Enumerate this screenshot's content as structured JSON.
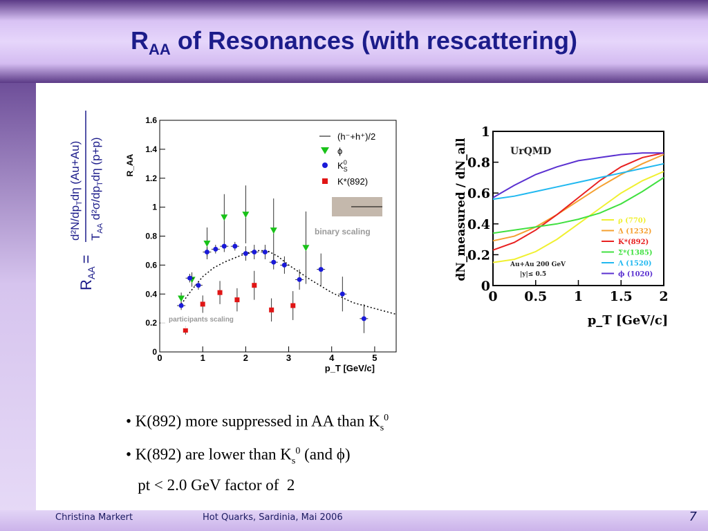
{
  "slide": {
    "title_main": "R",
    "title_sub": "AA",
    "title_rest": " of Resonances (with rescattering)",
    "formula": {
      "lhs": "R",
      "lhs_sub": "AA",
      "eq": "=",
      "numerator": "d²N/dp",
      "numerator_sub": "T",
      "numerator_rest": "dη  (Au+Au)",
      "den_a": "T",
      "den_a_sub": "AA",
      "den_b": " d²σ/dp",
      "den_b_sub": "T",
      "den_c": "dη  (p+p)"
    },
    "bullets": [
      {
        "text": "• K(892) more suppressed in AA than K",
        "sub": "s",
        "sup": "0",
        "tail": ""
      },
      {
        "text": "• K(892) are lower than K",
        "sub": "s",
        "sup": "0",
        "tail": " (and ϕ)"
      },
      {
        "text": "   pt < 2.0 GeV factor of  2",
        "sub": "",
        "sup": "",
        "tail": ""
      }
    ],
    "footer_author": "Christina Markert",
    "footer_event": "Hot Quarks, Sardinia, Mai 2006",
    "page_number": "7"
  },
  "chart_data": [
    {
      "type": "scatter",
      "ylabel": "R_AA",
      "xlabel": "p_T [GeV/c]",
      "xlim": [
        0,
        5.5
      ],
      "ylim": [
        0,
        1.6
      ],
      "x_ticks": [
        "0",
        "1",
        "2",
        "3",
        "4",
        "5"
      ],
      "y_ticks": [
        "0",
        "0.2",
        "0.4",
        "0.6",
        "0.8",
        "1",
        "1.2",
        "1.4",
        "1.6"
      ],
      "annotations": [
        "binary scaling",
        "participants scaling"
      ],
      "legend_placement": "top-right",
      "series": [
        {
          "name": "(h⁻+h⁺)/2",
          "style": "dashed-line",
          "color": "#000000",
          "x": [
            0.5,
            0.75,
            1.0,
            1.25,
            1.5,
            1.75,
            2.0,
            2.25,
            2.5,
            2.75,
            3.0,
            3.5,
            4.0,
            4.5,
            5.0,
            5.5
          ],
          "y": [
            0.33,
            0.43,
            0.52,
            0.58,
            0.62,
            0.65,
            0.68,
            0.7,
            0.7,
            0.66,
            0.6,
            0.5,
            0.41,
            0.34,
            0.3,
            0.26
          ]
        },
        {
          "name": "ϕ",
          "marker": "triangle-down",
          "color": "#19c219",
          "x": [
            0.5,
            0.75,
            1.1,
            1.5,
            2.0,
            2.65,
            3.4
          ],
          "y": [
            0.37,
            0.5,
            0.75,
            0.93,
            0.95,
            0.84,
            0.72
          ],
          "err": [
            0.04,
            0.05,
            0.11,
            0.16,
            0.2,
            0.22,
            0.25
          ]
        },
        {
          "name": "K",
          "name_sub": "S",
          "name_sup": "0",
          "marker": "circle",
          "color": "#1a1ad8",
          "x": [
            0.5,
            0.7,
            0.9,
            1.1,
            1.3,
            1.5,
            1.75,
            2.0,
            2.2,
            2.45,
            2.65,
            2.9,
            3.25,
            3.75,
            4.25,
            4.75
          ],
          "y": [
            0.32,
            0.51,
            0.46,
            0.69,
            0.71,
            0.73,
            0.73,
            0.68,
            0.69,
            0.69,
            0.62,
            0.6,
            0.5,
            0.57,
            0.4,
            0.23
          ],
          "err": [
            0.03,
            0.03,
            0.03,
            0.03,
            0.03,
            0.04,
            0.03,
            0.05,
            0.05,
            0.05,
            0.05,
            0.06,
            0.07,
            0.11,
            0.12,
            0.1
          ]
        },
        {
          "name": "K*(892)",
          "marker": "square",
          "color": "#e01515",
          "x": [
            0.6,
            1.0,
            1.4,
            1.8,
            2.2,
            2.6,
            3.1
          ],
          "y": [
            0.15,
            0.33,
            0.41,
            0.36,
            0.46,
            0.29,
            0.32
          ],
          "err": [
            0.03,
            0.06,
            0.08,
            0.08,
            0.1,
            0.08,
            0.1
          ]
        }
      ]
    },
    {
      "type": "line",
      "ylabel": "dN_measured / dN_all",
      "xlabel": "p_T [GeV/c]",
      "xlim": [
        0,
        2
      ],
      "ylim": [
        0,
        1
      ],
      "x_ticks": [
        "0",
        "0.5",
        "1",
        "1.5",
        "2"
      ],
      "y_ticks": [
        "0",
        "0.2",
        "0.4",
        "0.6",
        "0.8",
        "1"
      ],
      "model_label": "UrQMD",
      "system_label": "Au+Au 200 GeV",
      "cut_label": "|y|≤ 0.5",
      "legend_placement": "bottom-right",
      "series": [
        {
          "name": "ρ (770)",
          "color": "#f0f030",
          "x": [
            0,
            0.25,
            0.5,
            0.75,
            1.0,
            1.25,
            1.5,
            1.75,
            2.0
          ],
          "y": [
            0.15,
            0.17,
            0.22,
            0.3,
            0.4,
            0.5,
            0.6,
            0.68,
            0.74
          ]
        },
        {
          "name": "Δ (1232)",
          "color": "#f5a030",
          "x": [
            0,
            0.25,
            0.5,
            0.75,
            1.0,
            1.25,
            1.5,
            1.75,
            2.0
          ],
          "y": [
            0.29,
            0.32,
            0.38,
            0.46,
            0.55,
            0.64,
            0.72,
            0.79,
            0.85
          ]
        },
        {
          "name": "K*(892)",
          "color": "#e82020",
          "x": [
            0,
            0.25,
            0.5,
            0.75,
            1.0,
            1.25,
            1.5,
            1.75,
            2.0
          ],
          "y": [
            0.23,
            0.28,
            0.36,
            0.46,
            0.57,
            0.68,
            0.77,
            0.83,
            0.86
          ]
        },
        {
          "name": "Σ*(1385)",
          "color": "#40e040",
          "x": [
            0,
            0.25,
            0.5,
            0.75,
            1.0,
            1.25,
            1.5,
            1.75,
            2.0
          ],
          "y": [
            0.34,
            0.36,
            0.38,
            0.4,
            0.43,
            0.47,
            0.53,
            0.61,
            0.7
          ]
        },
        {
          "name": "Λ (1520)",
          "color": "#20b8f0",
          "x": [
            0,
            0.25,
            0.5,
            0.75,
            1.0,
            1.25,
            1.5,
            1.75,
            2.0
          ],
          "y": [
            0.56,
            0.58,
            0.61,
            0.64,
            0.67,
            0.7,
            0.73,
            0.76,
            0.79
          ]
        },
        {
          "name": "ϕ (1020)",
          "color": "#5a30d0",
          "x": [
            0,
            0.25,
            0.5,
            0.75,
            1.0,
            1.25,
            1.5,
            1.75,
            2.0
          ],
          "y": [
            0.57,
            0.65,
            0.72,
            0.77,
            0.81,
            0.83,
            0.85,
            0.86,
            0.86
          ]
        }
      ]
    }
  ]
}
